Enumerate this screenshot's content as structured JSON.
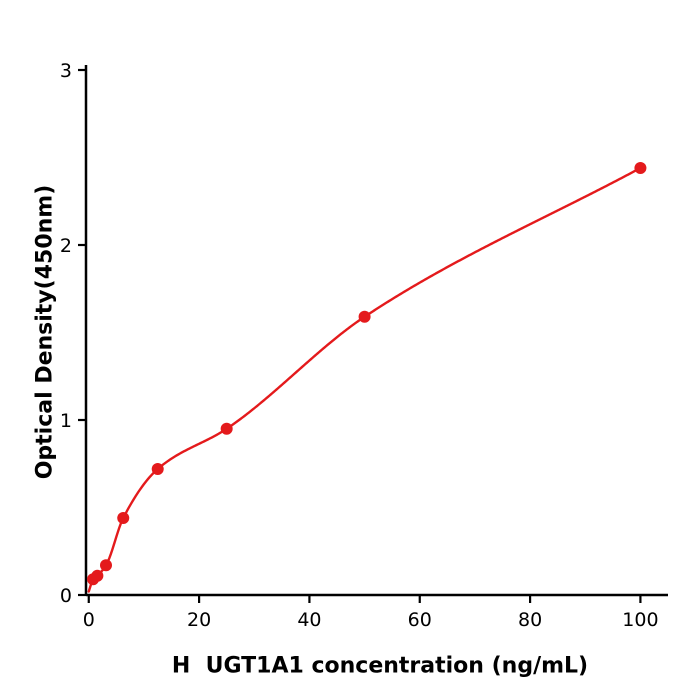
{
  "chart_data": {
    "type": "scatter",
    "title": "",
    "xlabel": "H  UGT1A1 concentration (ng/mL)",
    "ylabel": "Optical Density(450nm)",
    "x": [
      0.78,
      1.56,
      3.125,
      6.25,
      12.5,
      25,
      50,
      100
    ],
    "y": [
      0.09,
      0.11,
      0.17,
      0.44,
      0.72,
      0.95,
      1.59,
      2.44
    ],
    "fit_curve": {
      "type": "monotone-spline",
      "anchor": [
        0,
        0.02
      ]
    },
    "xlim": [
      -0.5,
      105
    ],
    "ylim": [
      0,
      3
    ],
    "xticks": [
      0,
      20,
      40,
      60,
      80,
      100
    ],
    "yticks": [
      0,
      1,
      2,
      3
    ],
    "marker_color": "#e41a1c",
    "line_color": "#e41a1c",
    "axis_color": "#000000",
    "background_color": "#ffffff",
    "grid": false,
    "legend": null,
    "marker_radius": 6
  }
}
